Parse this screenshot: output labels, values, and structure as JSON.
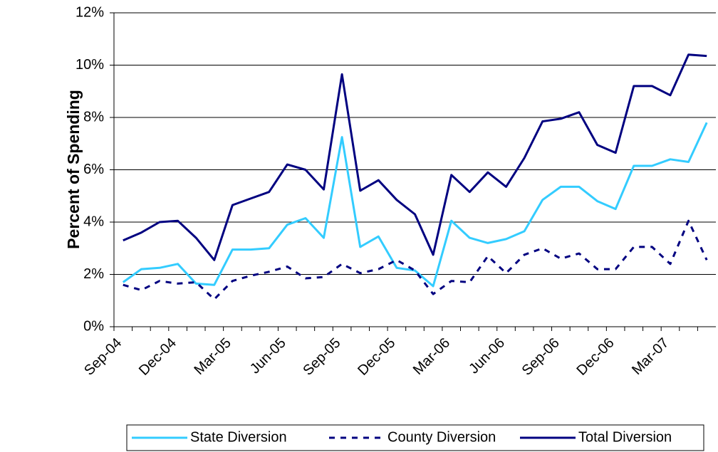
{
  "chart_data": {
    "type": "line",
    "y_label": "Percent of Spending",
    "categories": [
      "Sep-04",
      null,
      null,
      "Dec-04",
      null,
      null,
      "Mar-05",
      null,
      null,
      "Jun-05",
      null,
      null,
      "Sep-05",
      null,
      null,
      "Dec-05",
      null,
      null,
      "Mar-06",
      null,
      null,
      "Jun-06",
      null,
      null,
      "Sep-06",
      null,
      null,
      "Dec-06",
      null,
      null,
      "Mar-07",
      null,
      null
    ],
    "series": [
      {
        "name": "State Diversion",
        "color": "#33ccff",
        "dash": false,
        "values": [
          1.7,
          2.2,
          2.25,
          2.4,
          1.65,
          1.6,
          2.95,
          2.95,
          3.0,
          3.9,
          4.15,
          3.4,
          7.25,
          3.05,
          3.45,
          2.25,
          2.15,
          1.55,
          4.05,
          3.4,
          3.2,
          3.35,
          3.65,
          4.85,
          5.35,
          5.35,
          4.8,
          4.5,
          6.15,
          6.15,
          6.4,
          6.3,
          7.8
        ]
      },
      {
        "name": "County Diversion",
        "color": "#000080",
        "dash": true,
        "values": [
          1.6,
          1.4,
          1.75,
          1.65,
          1.7,
          1.05,
          1.75,
          1.95,
          2.1,
          2.3,
          1.85,
          1.9,
          2.4,
          2.05,
          2.2,
          2.55,
          2.15,
          1.25,
          1.75,
          1.7,
          2.7,
          2.05,
          2.75,
          3.0,
          2.6,
          2.8,
          2.2,
          2.2,
          3.05,
          3.05,
          2.4,
          4.05,
          2.55
        ]
      },
      {
        "name": "Total Diversion",
        "color": "#000080",
        "dash": false,
        "values": [
          3.3,
          3.6,
          4.0,
          4.05,
          3.4,
          2.55,
          4.65,
          4.9,
          5.15,
          6.2,
          6.0,
          5.25,
          9.65,
          5.2,
          5.6,
          4.85,
          4.3,
          2.75,
          5.8,
          5.15,
          5.9,
          5.35,
          6.45,
          7.85,
          7.95,
          8.2,
          6.95,
          6.65,
          9.2,
          9.2,
          8.85,
          10.4,
          10.35
        ]
      }
    ],
    "ylim": [
      0,
      12
    ],
    "yticks": [
      {
        "value": 0,
        "label": "0%"
      },
      {
        "value": 2,
        "label": "2%"
      },
      {
        "value": 4,
        "label": "4%"
      },
      {
        "value": 6,
        "label": "6%"
      },
      {
        "value": 8,
        "label": "8%"
      },
      {
        "value": 10,
        "label": "10%"
      },
      {
        "value": 12,
        "label": "12%"
      }
    ],
    "grid": true,
    "legend": "bottom"
  }
}
